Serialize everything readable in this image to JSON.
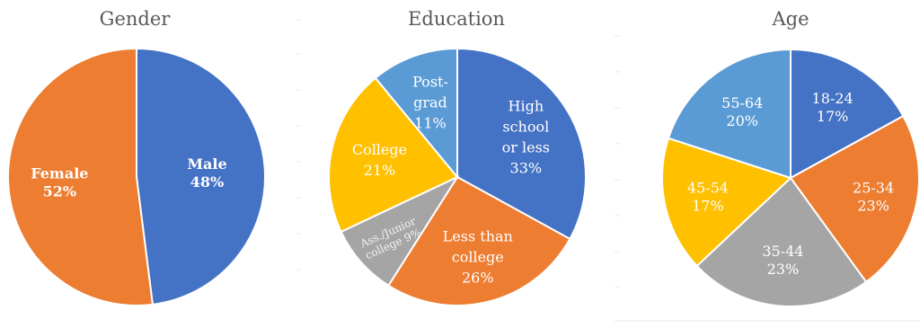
{
  "chart_data": [
    {
      "type": "pie",
      "title": "Gender",
      "slices": [
        {
          "label": [
            "Male",
            "48%"
          ],
          "value": 48,
          "color": "#4472C4",
          "bold": true
        },
        {
          "label": [
            "Female",
            "52%"
          ],
          "value": 52,
          "color": "#ED7D31",
          "bold": true
        }
      ]
    },
    {
      "type": "pie",
      "title": "Education",
      "slices": [
        {
          "label": [
            "High",
            "school",
            "or less",
            "33%"
          ],
          "value": 33,
          "color": "#4472C4"
        },
        {
          "label": [
            "Less than",
            "college",
            "26%"
          ],
          "value": 26,
          "color": "#ED7D31"
        },
        {
          "label": [
            "Ass./Junior",
            "college 9%"
          ],
          "value": 9,
          "color": "#A5A5A5",
          "small": true
        },
        {
          "label": [
            "College",
            "21%"
          ],
          "value": 21,
          "color": "#FFC000"
        },
        {
          "label": [
            "Post-",
            "grad",
            "11%"
          ],
          "value": 11,
          "color": "#5B9BD5"
        }
      ]
    },
    {
      "type": "pie",
      "title": "Age",
      "slices": [
        {
          "label": [
            "18-24",
            "17%"
          ],
          "value": 17,
          "color": "#4472C4"
        },
        {
          "label": [
            "25-34",
            "23%"
          ],
          "value": 23,
          "color": "#ED7D31"
        },
        {
          "label": [
            "35-44",
            "23%"
          ],
          "value": 23,
          "color": "#A5A5A5"
        },
        {
          "label": [
            "45-54",
            "17%"
          ],
          "value": 17,
          "color": "#FFC000"
        },
        {
          "label": [
            "55-64",
            "20%"
          ],
          "value": 20,
          "color": "#5B9BD5"
        }
      ]
    }
  ]
}
